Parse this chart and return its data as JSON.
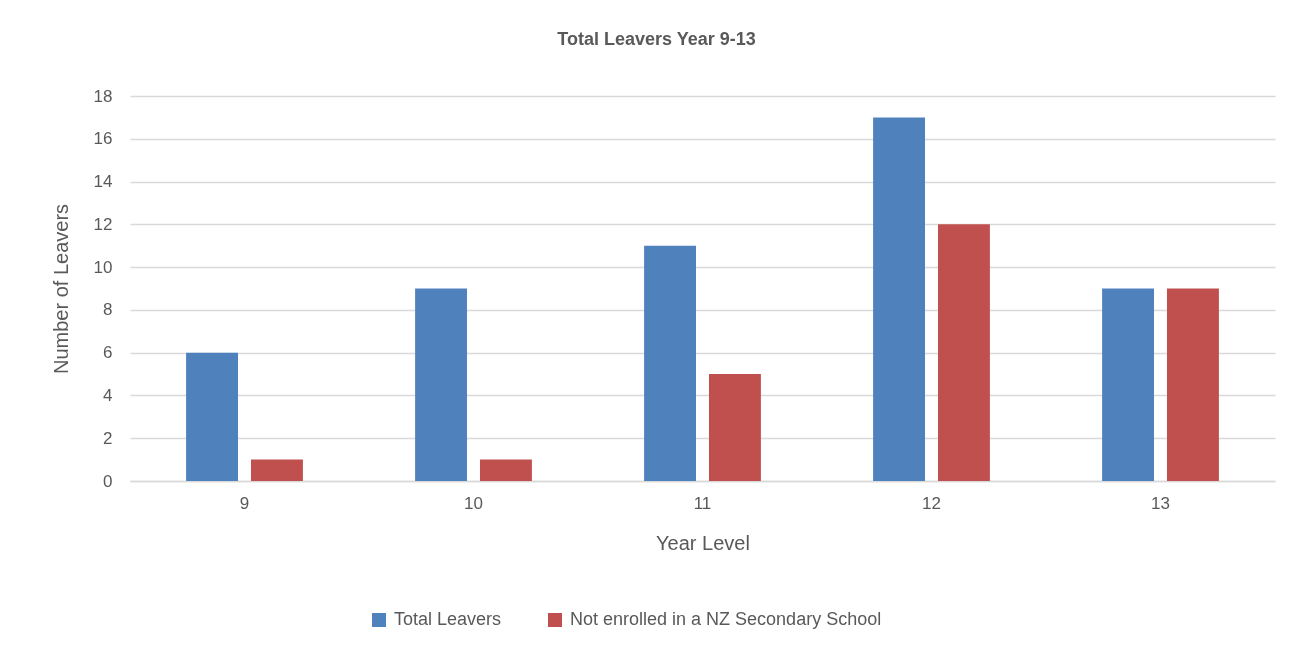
{
  "chart_data": {
    "type": "bar",
    "title": "Total Leavers Year 9-13",
    "xlabel": "Year Level",
    "ylabel": "Number of Leavers",
    "categories": [
      "9",
      "10",
      "11",
      "12",
      "13"
    ],
    "series": [
      {
        "name": "Total Leavers",
        "color": "#4f81bd",
        "values": [
          6,
          9,
          11,
          17,
          9
        ]
      },
      {
        "name": "Not enrolled in a NZ Secondary School",
        "color": "#c0504d",
        "values": [
          1,
          1,
          5,
          12,
          9
        ]
      }
    ],
    "ylim": [
      0,
      18
    ],
    "yticks": [
      0,
      2,
      4,
      6,
      8,
      10,
      12,
      14,
      16,
      18
    ],
    "grid": "y",
    "legend": "bottom"
  }
}
